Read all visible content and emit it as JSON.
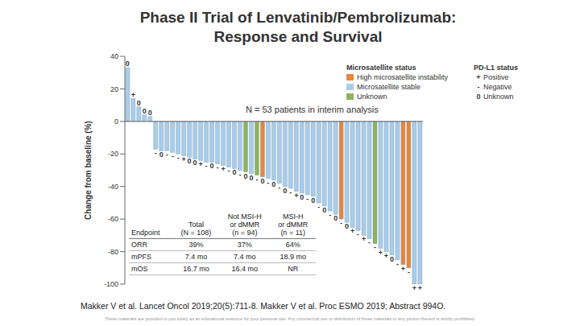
{
  "title": [
    "Phase II Trial of Lenvatinib/Pembrolizumab:",
    "Response and Survival"
  ],
  "chart_data": {
    "type": "bar",
    "y_label": "Change from baseline (%)",
    "ylim": [
      -100,
      40
    ],
    "yticks": [
      -100,
      -80,
      -60,
      -40,
      -20,
      0,
      20,
      40
    ],
    "annotation": "N = 53 patients in interim analysis",
    "values": [
      33,
      14,
      9,
      4,
      3,
      -17,
      -18,
      -18,
      -19,
      -20,
      -21,
      -22,
      -23,
      -24,
      -25,
      -25,
      -26,
      -27,
      -28,
      -29,
      -30,
      -31,
      -32,
      -33,
      -34,
      -35,
      -36,
      -38,
      -40,
      -41,
      -43,
      -44,
      -45,
      -46,
      -50,
      -52,
      -55,
      -57,
      -60,
      -62,
      -65,
      -67,
      -70,
      -72,
      -75,
      -78,
      -80,
      -82,
      -85,
      -88,
      -90,
      -100,
      -100
    ],
    "colors": [
      "#a9cde9",
      "#a9cde9",
      "#a9cde9",
      "#a9cde9",
      "#a9cde9",
      "#a9cde9",
      "#a9cde9",
      "#a9cde9",
      "#a9cde9",
      "#a9cde9",
      "#a9cde9",
      "#a9cde9",
      "#a9cde9",
      "#a9cde9",
      "#a9cde9",
      "#a9cde9",
      "#a9cde9",
      "#a9cde9",
      "#a9cde9",
      "#a9cde9",
      "#a9cde9",
      "#8fb35a",
      "#a9cde9",
      "#8fb35a",
      "#e8853a",
      "#a9cde9",
      "#a9cde9",
      "#a9cde9",
      "#a9cde9",
      "#a9cde9",
      "#a9cde9",
      "#a9cde9",
      "#a9cde9",
      "#a9cde9",
      "#a9cde9",
      "#a9cde9",
      "#a9cde9",
      "#a9cde9",
      "#e8853a",
      "#a9cde9",
      "#a9cde9",
      "#a9cde9",
      "#a9cde9",
      "#a9cde9",
      "#8fb35a",
      "#a9cde9",
      "#a9cde9",
      "#a9cde9",
      "#a9cde9",
      "#e8853a",
      "#e8853a",
      "#a9cde9",
      "#a9cde9"
    ],
    "pd_l1": [
      "0",
      "+",
      "0",
      "0",
      "0",
      "-",
      "0",
      "-",
      "-",
      "-",
      "+",
      "0",
      "0",
      "+",
      "-",
      "0",
      "-",
      "+",
      "-",
      "0",
      "-",
      "0",
      "0",
      "-",
      "0",
      "-",
      "0",
      "-",
      "0",
      "-",
      "+",
      "0",
      "-",
      "0",
      "-",
      "0",
      "-",
      "0",
      "-",
      "0",
      "+",
      "-",
      "+",
      "-",
      "-",
      "+",
      "+",
      "0",
      "-",
      "+",
      "-",
      "+",
      "+"
    ],
    "microsatellite_legend": {
      "title": "Microsatellite status",
      "items": [
        {
          "label": "High microsatellite instability",
          "color": "#e8853a"
        },
        {
          "label": "Microsatellite stable",
          "color": "#a9cde9"
        },
        {
          "label": "Unknown",
          "color": "#8fb35a"
        }
      ]
    },
    "pd_l1_legend": {
      "title": "PD-L1 status",
      "items": [
        {
          "symbol": "+",
          "label": "Positive"
        },
        {
          "symbol": "-",
          "label": "Negative"
        },
        {
          "symbol": "0",
          "label": "Unknown"
        }
      ]
    }
  },
  "table": {
    "header": [
      "Endpoint",
      "Total\n(N = 108)",
      "Not MSI-H\nor dMMR\n(n = 94)",
      "MSI-H\nor dMMR\n(n = 11)"
    ],
    "rows": [
      [
        "ORR",
        "39%",
        "37%",
        "64%"
      ],
      [
        "mPFS",
        "7.4 mo",
        "7.4 mo",
        "18.9 mo"
      ],
      [
        "mOS",
        "16.7 mo",
        "16.4 mo",
        "NR"
      ]
    ]
  },
  "citation": "Makker V et al. Lancet Oncol 2019;20(5):711-8. Makker V et al. Proc ESMO 2019; Abstract 994O.",
  "footnote": "These materials are provided to you solely as an educational resource for your personal use. Any commercial use or distribution of these materials or any portion thereof is strictly prohibited."
}
